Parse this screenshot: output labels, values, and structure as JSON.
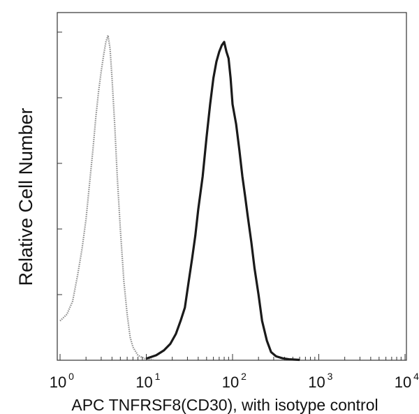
{
  "chart_data": {
    "type": "line",
    "title": "",
    "xlabel": "APC TNFRSF8(CD30), with isotype control",
    "ylabel": "Relative Cell Number",
    "x_scale": "log",
    "xlim": [
      1,
      10000
    ],
    "ylim": [
      0,
      100
    ],
    "x_ticks": [
      {
        "base": "10",
        "exp": "0",
        "value": 1
      },
      {
        "base": "10",
        "exp": "1",
        "value": 10
      },
      {
        "base": "10",
        "exp": "2",
        "value": 100
      },
      {
        "base": "10",
        "exp": "3",
        "value": 1000
      },
      {
        "base": "10",
        "exp": "4",
        "value": 10000
      }
    ],
    "grid": false,
    "legend": "none",
    "series": [
      {
        "style": "dotted",
        "color": "#8a8a8a",
        "x": [
          1.0,
          1.2,
          1.4,
          1.6,
          1.8,
          2.0,
          2.2,
          2.4,
          2.6,
          2.8,
          3.0,
          3.2,
          3.4,
          3.6,
          3.8,
          4.0,
          4.3,
          4.6,
          5.0,
          5.5,
          6.0,
          6.5,
          7.0,
          8.0,
          9.0,
          10.0,
          12.0
        ],
        "values": [
          12,
          14,
          18,
          26,
          34,
          43,
          54,
          64,
          74,
          82,
          88,
          93,
          97,
          99,
          95,
          86,
          72,
          56,
          40,
          24,
          14,
          7,
          4,
          1.5,
          0.8,
          0.4,
          0.2
        ]
      },
      {
        "style": "solid",
        "color": "#1a1a1a",
        "x": [
          10,
          13,
          16,
          19,
          22,
          25,
          28,
          31,
          34,
          37,
          40,
          45,
          50,
          55,
          60,
          65,
          70,
          75,
          80,
          85,
          90,
          95,
          100,
          110,
          120,
          130,
          140,
          150,
          165,
          180,
          200,
          220,
          250,
          280,
          320,
          380,
          450,
          600
        ],
        "values": [
          0.5,
          1.5,
          3,
          5,
          8,
          12,
          16,
          24,
          31,
          38,
          46,
          56,
          68,
          78,
          86,
          91,
          94,
          96,
          97,
          94,
          92,
          86,
          78,
          72,
          64,
          56,
          50,
          44,
          36,
          28,
          20,
          12,
          6,
          2.5,
          1.2,
          0.6,
          0.3,
          0.1
        ]
      }
    ]
  }
}
